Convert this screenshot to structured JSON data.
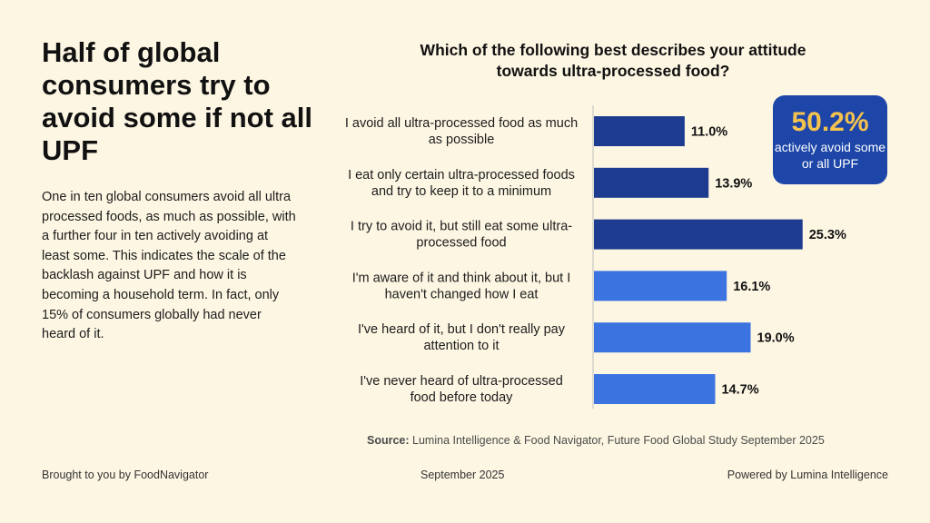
{
  "headline": "Half of global consumers try to avoid some if not all UPF",
  "body_text": "One in ten global consumers avoid all ultra processed foods, as much as possible, with a further four in ten actively avoiding at least some. This indicates the scale of the backlash against UPF and how it is becoming a household term. In fact, only 15% of consumers globally had never heard of it.",
  "chart_title": "Which of the following best describes your attitude towards ultra-processed food?",
  "callout": {
    "value": "50.2%",
    "text": "actively avoid some or all UPF"
  },
  "source": {
    "label": "Source:",
    "text": "Lumina Intelligence & Food Navigator, Future Food Global Study September 2025"
  },
  "footer": {
    "left": "Brought to you by FoodNavigator",
    "center": "September 2025",
    "right": "Powered by Lumina Intelligence"
  },
  "colors": {
    "dark_bar": "#1d3b8f",
    "light_bar": "#3b74e0",
    "background": "#fdf6e3",
    "callout_bg": "#1d46a8",
    "callout_value": "#f6c24e"
  },
  "chart_data": {
    "type": "bar",
    "orientation": "horizontal",
    "categories": [
      [
        "I avoid all ultra-processed food as much",
        "as possible"
      ],
      [
        "I eat only certain ultra-processed foods",
        "and try to keep it to a minimum"
      ],
      [
        "I try to avoid it, but still eat some ultra-",
        "processed food"
      ],
      [
        "I'm aware of it and think about it, but I",
        "haven't changed how I eat"
      ],
      [
        "I've heard of it, but I don't really pay",
        "attention to it"
      ],
      [
        "I've never heard of ultra-processed",
        "food before today"
      ]
    ],
    "values": [
      11.0,
      13.9,
      25.3,
      16.1,
      19.0,
      14.7
    ],
    "value_labels": [
      "11.0%",
      "13.9%",
      "25.3%",
      "16.1%",
      "19.0%",
      "14.7%"
    ],
    "highlight_group": [
      "avoid",
      "avoid",
      "avoid",
      "other",
      "other",
      "other"
    ],
    "title": "Which of the following best describes your attitude towards ultra-processed food?",
    "xlim": [
      0,
      30
    ],
    "grid": false,
    "legend": "none"
  }
}
